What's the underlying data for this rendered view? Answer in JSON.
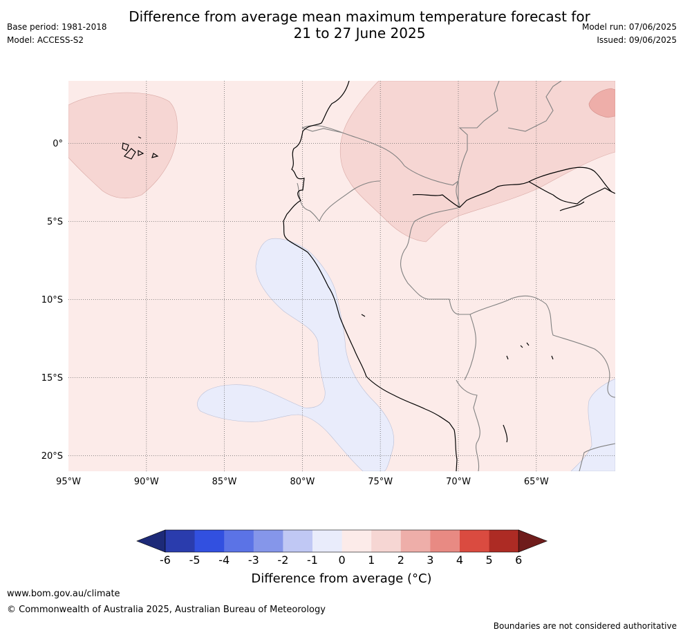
{
  "title": "Difference from average mean maximum temperature forecast for\n21 to 27 June 2025",
  "base_period": "Base period: 1981-2018",
  "model": "Model: ACCESS-S2",
  "model_run": "Model run: 07/06/2025",
  "issued": "Issued: 09/06/2025",
  "map": {
    "lon_range": [
      -95,
      -60
    ],
    "lat_range": [
      -21,
      4
    ],
    "lon_ticks": [
      "95°W",
      "90°W",
      "85°W",
      "80°W",
      "75°W",
      "70°W",
      "65°W"
    ],
    "lat_ticks": [
      "0°",
      "5°S",
      "10°S",
      "15°S",
      "20°S"
    ],
    "background_category": "0 to 1",
    "gridlines": true
  },
  "colorbar": {
    "ticks": [
      "-6",
      "-5",
      "-4",
      "-3",
      "-2",
      "-1",
      "0",
      "1",
      "2",
      "3",
      "4",
      "5",
      "6"
    ],
    "colors": [
      "#1d2a78",
      "#2a3cad",
      "#3250e0",
      "#5b73e6",
      "#8596ea",
      "#c0c8f4",
      "#e9ecfb",
      "#fcebe9",
      "#f6d6d3",
      "#eeaea9",
      "#e88a83",
      "#da4b40",
      "#ad2b24",
      "#6f1c1b"
    ],
    "title": "Difference from average (°C)"
  },
  "footer": {
    "site": "www.bom.gov.au/climate",
    "copyright": "© Commonwealth of Australia 2025, Australian Bureau of Meteorology",
    "disclaimer": "Boundaries are not considered authoritative"
  }
}
